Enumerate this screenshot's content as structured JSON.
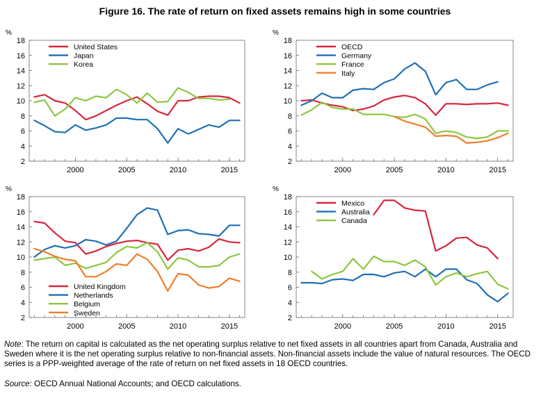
{
  "figure": {
    "title": "Figure 16. The rate of return on fixed assets remains high in some countries",
    "note_label": "Note",
    "note_text": ": The return on capital is calculated as the net operating surplus relative to net fixed assets in all countries apart from Canada, Australia and Sweden where it is the net operating surplus relative to non-financial assets. Non-financial assets include the value of natural resources. The OECD series is a PPP-weighted average of the rate of return on net fixed assets in 18 OECD countries.",
    "source_label": "Source",
    "source_text": ": OECD Annual National Accounts; and OECD calculations."
  },
  "colors": {
    "red": "#d7263d",
    "blue": "#1f6fb5",
    "green": "#8dc63f",
    "orange": "#f07d2a"
  },
  "chart_data": [
    {
      "type": "line",
      "title": "",
      "ylabel": "%",
      "xlabel": "",
      "xlim": [
        1995.5,
        2016.5
      ],
      "ylim": [
        2,
        18
      ],
      "yticks": [
        2,
        4,
        6,
        8,
        10,
        12,
        14,
        16,
        18
      ],
      "xticks": [
        2000,
        2005,
        2010,
        2015
      ],
      "legend_position": "top-left",
      "x": [
        1996,
        1997,
        1998,
        1999,
        2000,
        2001,
        2002,
        2003,
        2004,
        2005,
        2006,
        2007,
        2008,
        2009,
        2010,
        2011,
        2012,
        2013,
        2014,
        2015,
        2016
      ],
      "series": [
        {
          "name": "United States",
          "color": "red",
          "values": [
            10.5,
            10.8,
            10.0,
            9.7,
            8.7,
            7.5,
            8.0,
            8.7,
            9.4,
            10.0,
            10.5,
            9.6,
            8.6,
            8.1,
            10.0,
            10.0,
            10.5,
            10.6,
            10.6,
            10.4,
            9.7
          ]
        },
        {
          "name": "Japan",
          "color": "blue",
          "values": [
            7.4,
            6.7,
            5.9,
            5.8,
            6.8,
            6.1,
            6.4,
            6.8,
            7.7,
            7.7,
            7.5,
            7.5,
            6.3,
            4.4,
            6.3,
            5.6,
            6.2,
            6.8,
            6.5,
            7.4,
            7.4
          ]
        },
        {
          "name": "Korea",
          "color": "green",
          "values": [
            9.8,
            10.1,
            8.0,
            8.9,
            10.4,
            10.0,
            10.6,
            10.4,
            11.5,
            10.8,
            9.7,
            11.0,
            9.8,
            9.9,
            11.7,
            11.1,
            10.3,
            10.3,
            10.1,
            10.2,
            null
          ]
        }
      ]
    },
    {
      "type": "line",
      "title": "",
      "ylabel": "%",
      "xlabel": "",
      "xlim": [
        1995.5,
        2016.5
      ],
      "ylim": [
        2,
        18
      ],
      "yticks": [
        2,
        4,
        6,
        8,
        10,
        12,
        14,
        16,
        18
      ],
      "xticks": [
        2000,
        2005,
        2010,
        2015
      ],
      "legend_position": "top-center",
      "x": [
        1996,
        1997,
        1998,
        1999,
        2000,
        2001,
        2002,
        2003,
        2004,
        2005,
        2006,
        2007,
        2008,
        2009,
        2010,
        2011,
        2012,
        2013,
        2014,
        2015,
        2016
      ],
      "series": [
        {
          "name": "OECD",
          "color": "red",
          "values": [
            10.0,
            10.1,
            9.7,
            9.4,
            9.2,
            8.7,
            8.9,
            9.3,
            10.1,
            10.5,
            10.7,
            10.4,
            9.6,
            8.1,
            9.6,
            9.6,
            9.5,
            9.6,
            9.6,
            9.7,
            9.4
          ]
        },
        {
          "name": "Germany",
          "color": "blue",
          "values": [
            9.4,
            10.0,
            11.0,
            10.4,
            10.4,
            11.4,
            11.6,
            11.5,
            12.4,
            12.9,
            14.2,
            15.0,
            13.9,
            10.8,
            12.4,
            12.8,
            11.5,
            11.5,
            12.1,
            12.5,
            null
          ]
        },
        {
          "name": "France",
          "color": "green",
          "values": [
            8.1,
            8.8,
            9.8,
            9.1,
            8.9,
            8.9,
            8.2,
            8.2,
            8.2,
            7.9,
            7.8,
            8.2,
            7.6,
            5.7,
            6.0,
            5.8,
            5.2,
            5.0,
            5.2,
            6.0,
            6.0
          ]
        },
        {
          "name": "Italy",
          "color": "orange",
          "values": [
            null,
            null,
            null,
            null,
            null,
            null,
            null,
            null,
            null,
            7.9,
            7.3,
            6.9,
            6.5,
            5.3,
            5.4,
            5.3,
            4.4,
            4.5,
            4.7,
            5.1,
            5.7
          ]
        }
      ]
    },
    {
      "type": "line",
      "title": "",
      "ylabel": "%",
      "xlabel": "",
      "xlim": [
        1995.5,
        2016.5
      ],
      "ylim": [
        2,
        18
      ],
      "yticks": [
        2,
        4,
        6,
        8,
        10,
        12,
        14,
        16,
        18
      ],
      "xticks": [
        2000,
        2005,
        2010,
        2015
      ],
      "legend_position": "bottom-left",
      "x": [
        1996,
        1997,
        1998,
        1999,
        2000,
        2001,
        2002,
        2003,
        2004,
        2005,
        2006,
        2007,
        2008,
        2009,
        2010,
        2011,
        2012,
        2013,
        2014,
        2015,
        2016
      ],
      "series": [
        {
          "name": "United Kingdom",
          "color": "red",
          "values": [
            14.7,
            14.5,
            13.2,
            12.1,
            11.9,
            10.4,
            10.8,
            11.4,
            11.8,
            12.1,
            12.2,
            11.9,
            11.7,
            9.6,
            10.9,
            11.1,
            10.8,
            11.3,
            12.4,
            12.0,
            11.9
          ]
        },
        {
          "name": "Netherlands",
          "color": "blue",
          "values": [
            10.0,
            11.0,
            11.5,
            11.2,
            11.5,
            12.3,
            12.1,
            11.6,
            12.1,
            13.8,
            15.6,
            16.5,
            16.2,
            13.0,
            13.5,
            13.6,
            13.1,
            13.0,
            12.8,
            14.2,
            14.2
          ]
        },
        {
          "name": "Belgium",
          "color": "green",
          "values": [
            9.6,
            9.8,
            10.0,
            8.9,
            9.2,
            8.5,
            8.9,
            9.3,
            10.6,
            11.4,
            11.2,
            11.9,
            10.7,
            8.4,
            9.9,
            9.6,
            8.7,
            8.7,
            8.9,
            10.0,
            10.4
          ]
        },
        {
          "name": "Sweden",
          "color": "orange",
          "values": [
            11.1,
            10.7,
            10.1,
            9.7,
            9.5,
            7.4,
            7.4,
            8.1,
            9.1,
            8.9,
            10.4,
            9.7,
            8.1,
            5.5,
            7.8,
            7.6,
            6.3,
            5.9,
            6.1,
            7.2,
            6.8
          ]
        }
      ]
    },
    {
      "type": "line",
      "title": "",
      "ylabel": "%",
      "xlabel": "",
      "xlim": [
        1995.5,
        2016.5
      ],
      "ylim": [
        2,
        18
      ],
      "yticks": [
        2,
        4,
        6,
        8,
        10,
        12,
        14,
        16,
        18
      ],
      "xticks": [
        2000,
        2005,
        2010,
        2015
      ],
      "legend_position": "top-center",
      "x": [
        1996,
        1997,
        1998,
        1999,
        2000,
        2001,
        2002,
        2003,
        2004,
        2005,
        2006,
        2007,
        2008,
        2009,
        2010,
        2011,
        2012,
        2013,
        2014,
        2015,
        2016
      ],
      "series": [
        {
          "name": "Mexico",
          "color": "red",
          "values": [
            null,
            null,
            null,
            null,
            null,
            null,
            null,
            15.6,
            17.5,
            17.5,
            16.5,
            16.2,
            16.1,
            10.8,
            11.5,
            12.5,
            12.6,
            11.6,
            11.2,
            9.8,
            null
          ]
        },
        {
          "name": "Australia",
          "color": "blue",
          "values": [
            6.6,
            6.6,
            6.5,
            7.0,
            7.1,
            6.9,
            7.7,
            7.7,
            7.4,
            7.9,
            8.1,
            7.4,
            8.4,
            7.4,
            8.4,
            8.4,
            7.0,
            6.5,
            5.0,
            4.1,
            5.2
          ]
        },
        {
          "name": "Canada",
          "color": "green",
          "values": [
            null,
            8.1,
            7.1,
            7.7,
            8.1,
            9.8,
            8.4,
            10.1,
            9.4,
            9.4,
            8.9,
            9.6,
            8.7,
            6.3,
            7.4,
            7.9,
            7.4,
            7.8,
            8.1,
            6.4,
            5.8
          ]
        }
      ]
    }
  ]
}
